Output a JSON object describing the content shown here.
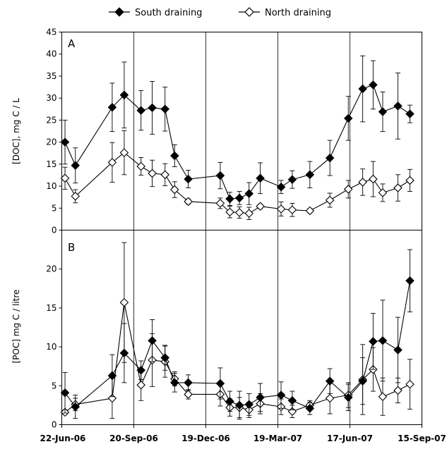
{
  "chart_data": {
    "type": "line",
    "legend": {
      "placement": "top-center",
      "entries": [
        {
          "label": "South draining",
          "marker": "filled-diamond",
          "color": "#000000"
        },
        {
          "label": "North draining",
          "marker": "open-diamond",
          "color": "#000000"
        }
      ]
    },
    "x_axis": {
      "ticks": [
        "22-Jun-06",
        "20-Sep-06",
        "19-Dec-06",
        "19-Mar-07",
        "17-Jun-07",
        "15-Sep-07"
      ],
      "range": [
        "2006-06-22",
        "2007-09-15"
      ]
    },
    "vertical_gridlines_at": [
      "2006-09-20",
      "2006-12-19",
      "2007-03-19",
      "2007-06-17"
    ],
    "panels": [
      {
        "id": "A",
        "ylabel": "[DOC], mg C / L",
        "ylim": [
          0,
          45
        ],
        "yticks": [
          0,
          5,
          10,
          15,
          20,
          25,
          30,
          35,
          40,
          45
        ],
        "series": [
          {
            "name": "South draining",
            "marker": "filled",
            "points": [
              {
                "x": "2006-06-26",
                "y": 20.0,
                "err": 5.0
              },
              {
                "x": "2006-07-09",
                "y": 14.7,
                "err": 4.0
              },
              {
                "x": "2006-08-24",
                "y": 27.9,
                "err": 5.5
              },
              {
                "x": "2006-09-08",
                "y": 30.7,
                "err": 7.5
              },
              {
                "x": "2006-09-29",
                "y": 27.2,
                "err": 4.5
              },
              {
                "x": "2006-10-13",
                "y": 27.8,
                "err": 6.0
              },
              {
                "x": "2006-10-29",
                "y": 27.5,
                "err": 5.0
              },
              {
                "x": "2006-11-10",
                "y": 16.9,
                "err": 2.5
              },
              {
                "x": "2006-11-27",
                "y": 11.6,
                "err": 2.0
              },
              {
                "x": "2007-01-06",
                "y": 12.4,
                "err": 3.0
              },
              {
                "x": "2007-01-18",
                "y": 7.1,
                "err": 1.5
              },
              {
                "x": "2007-01-30",
                "y": 7.3,
                "err": 1.5
              },
              {
                "x": "2007-02-11",
                "y": 8.3,
                "err": 2.5
              },
              {
                "x": "2007-02-25",
                "y": 11.8,
                "err": 3.5
              },
              {
                "x": "2007-03-23",
                "y": 9.8,
                "err": 1.5
              },
              {
                "x": "2007-04-06",
                "y": 11.5,
                "err": 2.0
              },
              {
                "x": "2007-04-28",
                "y": 12.6,
                "err": 3.0
              },
              {
                "x": "2007-05-23",
                "y": 16.4,
                "err": 4.0
              },
              {
                "x": "2007-06-15",
                "y": 25.4,
                "err": 5.0
              },
              {
                "x": "2007-07-03",
                "y": 32.1,
                "err": 7.5
              },
              {
                "x": "2007-07-16",
                "y": 33.0,
                "err": 5.5
              },
              {
                "x": "2007-07-28",
                "y": 26.9,
                "err": 4.5
              },
              {
                "x": "2007-08-16",
                "y": 28.2,
                "err": 7.5
              },
              {
                "x": "2007-08-31",
                "y": 26.4,
                "err": 2.0
              }
            ]
          },
          {
            "name": "North draining",
            "marker": "open",
            "points": [
              {
                "x": "2006-06-26",
                "y": 11.8,
                "err": 2.5
              },
              {
                "x": "2006-07-09",
                "y": 7.7,
                "err": 1.5
              },
              {
                "x": "2006-08-24",
                "y": 15.4,
                "err": 4.5
              },
              {
                "x": "2006-09-08",
                "y": 17.6,
                "err": 5.0
              },
              {
                "x": "2006-09-29",
                "y": 14.5,
                "err": 2.0
              },
              {
                "x": "2006-10-13",
                "y": 12.9,
                "err": 3.0
              },
              {
                "x": "2006-10-29",
                "y": 12.6,
                "err": 2.5
              },
              {
                "x": "2006-11-10",
                "y": 9.2,
                "err": 1.8
              },
              {
                "x": "2006-11-27",
                "y": 6.5,
                "err": 0.6
              },
              {
                "x": "2007-01-06",
                "y": 6.1,
                "err": 1.2
              },
              {
                "x": "2007-01-18",
                "y": 4.1,
                "err": 1.3
              },
              {
                "x": "2007-01-30",
                "y": 4.0,
                "err": 1.3
              },
              {
                "x": "2007-02-11",
                "y": 3.8,
                "err": 1.4
              },
              {
                "x": "2007-02-25",
                "y": 5.4,
                "err": 0.5
              },
              {
                "x": "2007-03-23",
                "y": 4.8,
                "err": 1.6
              },
              {
                "x": "2007-04-06",
                "y": 4.6,
                "err": 1.5
              },
              {
                "x": "2007-04-28",
                "y": 4.4,
                "err": 0.5
              },
              {
                "x": "2007-05-23",
                "y": 6.8,
                "err": 1.6
              },
              {
                "x": "2007-06-15",
                "y": 9.3,
                "err": 2.0
              },
              {
                "x": "2007-07-03",
                "y": 10.9,
                "err": 3.0
              },
              {
                "x": "2007-07-16",
                "y": 11.6,
                "err": 4.0
              },
              {
                "x": "2007-07-28",
                "y": 8.5,
                "err": 2.0
              },
              {
                "x": "2007-08-16",
                "y": 9.6,
                "err": 3.0
              },
              {
                "x": "2007-08-31",
                "y": 11.3,
                "err": 2.5
              }
            ]
          }
        ]
      },
      {
        "id": "B",
        "ylabel": "[POC] mg C / litre",
        "ylim": [
          0,
          25
        ],
        "yticks": [
          0,
          5,
          10,
          15,
          20
        ],
        "series": [
          {
            "name": "South draining",
            "marker": "filled",
            "points": [
              {
                "x": "2006-06-26",
                "y": 4.1,
                "err": 2.6
              },
              {
                "x": "2006-07-09",
                "y": 2.3,
                "err": 1.5
              },
              {
                "x": "2006-08-24",
                "y": 6.3,
                "err": 2.7
              },
              {
                "x": "2006-09-08",
                "y": 9.2,
                "err": 3.8
              },
              {
                "x": "2006-09-29",
                "y": 7.0,
                "err": 1.2
              },
              {
                "x": "2006-10-13",
                "y": 10.8,
                "err": 2.7
              },
              {
                "x": "2006-10-29",
                "y": 8.6,
                "err": 1.6
              },
              {
                "x": "2006-11-10",
                "y": 5.4,
                "err": 1.2
              },
              {
                "x": "2006-11-27",
                "y": 5.4,
                "err": 1.0
              },
              {
                "x": "2007-01-06",
                "y": 5.3,
                "err": 2.0
              },
              {
                "x": "2007-01-18",
                "y": 3.0,
                "err": 1.3
              },
              {
                "x": "2007-01-30",
                "y": 2.5,
                "err": 1.8
              },
              {
                "x": "2007-02-11",
                "y": 2.6,
                "err": 1.4
              },
              {
                "x": "2007-02-25",
                "y": 3.5,
                "err": 1.8
              },
              {
                "x": "2007-03-23",
                "y": 3.8,
                "err": 1.7
              },
              {
                "x": "2007-04-06",
                "y": 3.1,
                "err": 1.2
              },
              {
                "x": "2007-04-28",
                "y": 2.1,
                "err": 0.8
              },
              {
                "x": "2007-05-23",
                "y": 5.6,
                "err": 1.6
              },
              {
                "x": "2007-06-15",
                "y": 3.5,
                "err": 1.7
              },
              {
                "x": "2007-07-03",
                "y": 5.6,
                "err": 3.0
              },
              {
                "x": "2007-07-16",
                "y": 10.7,
                "err": 3.6
              },
              {
                "x": "2007-07-28",
                "y": 10.8,
                "err": 5.2
              },
              {
                "x": "2007-08-16",
                "y": 9.6,
                "err": 4.2
              },
              {
                "x": "2007-08-31",
                "y": 18.5,
                "err": 4.0
              }
            ]
          },
          {
            "name": "North draining",
            "marker": "open",
            "points": [
              {
                "x": "2006-06-26",
                "y": 1.6,
                "err": 0.3
              },
              {
                "x": "2006-07-09",
                "y": 2.6,
                "err": 0.8
              },
              {
                "x": "2006-08-24",
                "y": 3.4,
                "err": 2.6
              },
              {
                "x": "2006-09-08",
                "y": 15.7,
                "err": 7.7
              },
              {
                "x": "2006-09-29",
                "y": 5.1,
                "err": 2.0
              },
              {
                "x": "2006-10-13",
                "y": 8.3,
                "err": 3.4
              },
              {
                "x": "2006-10-29",
                "y": 8.1,
                "err": 2.0
              },
              {
                "x": "2006-11-10",
                "y": 5.9,
                "err": 0.9
              },
              {
                "x": "2006-11-27",
                "y": 3.9,
                "err": 0.6
              },
              {
                "x": "2007-01-06",
                "y": 3.9,
                "err": 1.5
              },
              {
                "x": "2007-01-18",
                "y": 2.2,
                "err": 1.1
              },
              {
                "x": "2007-01-30",
                "y": 2.2,
                "err": 1.3
              },
              {
                "x": "2007-02-11",
                "y": 1.9,
                "err": 1.0
              },
              {
                "x": "2007-02-25",
                "y": 2.7,
                "err": 1.3
              },
              {
                "x": "2007-03-23",
                "y": 2.3,
                "err": 1.0
              },
              {
                "x": "2007-04-06",
                "y": 1.7,
                "err": 0.8
              },
              {
                "x": "2007-04-28",
                "y": 2.5,
                "err": 0.6
              },
              {
                "x": "2007-05-23",
                "y": 3.4,
                "err": 2.0
              },
              {
                "x": "2007-06-15",
                "y": 3.8,
                "err": 1.6
              },
              {
                "x": "2007-07-03",
                "y": 5.8,
                "err": 4.5
              },
              {
                "x": "2007-07-16",
                "y": 7.1,
                "err": 2.8
              },
              {
                "x": "2007-07-28",
                "y": 3.6,
                "err": 2.4
              },
              {
                "x": "2007-08-16",
                "y": 4.4,
                "err": 1.6
              },
              {
                "x": "2007-08-31",
                "y": 5.2,
                "err": 3.2
              }
            ]
          }
        ]
      }
    ]
  }
}
